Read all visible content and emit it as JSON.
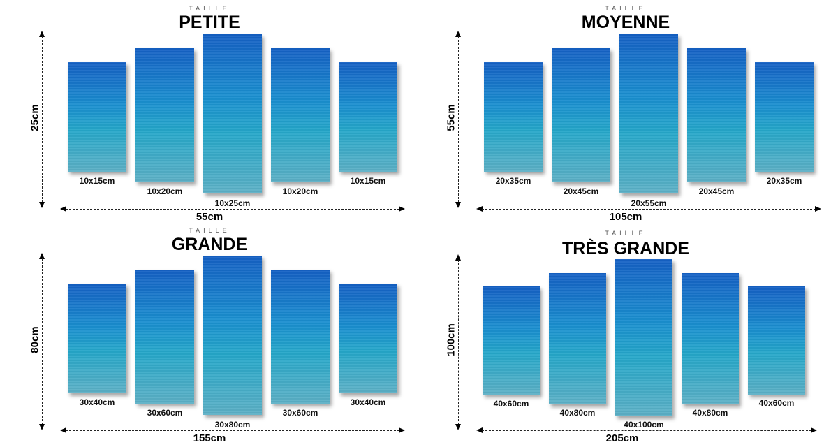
{
  "taille_label": "TAILLE",
  "sizes": [
    {
      "title": "PETITE",
      "height_label": "25cm",
      "width_label": "55cm",
      "panels": [
        "10x15cm",
        "10x20cm",
        "10x25cm",
        "10x20cm",
        "10x15cm"
      ]
    },
    {
      "title": "MOYENNE",
      "height_label": "55cm",
      "width_label": "105cm",
      "panels": [
        "20x35cm",
        "20x45cm",
        "20x55cm",
        "20x45cm",
        "20x35cm"
      ]
    },
    {
      "title": "GRANDE",
      "height_label": "80cm",
      "width_label": "155cm",
      "panels": [
        "30x40cm",
        "30x60cm",
        "30x80cm",
        "30x60cm",
        "30x40cm"
      ]
    },
    {
      "title": "TRÈS GRANDE",
      "height_label": "100cm",
      "width_label": "205cm",
      "panels": [
        "40x60cm",
        "40x80cm",
        "40x100cm",
        "40x80cm",
        "40x60cm"
      ]
    }
  ],
  "colors": {
    "canvas_top": "#1560c4",
    "canvas_mid": "#1a8fcf",
    "canvas_bottom": "#5db0c6"
  }
}
